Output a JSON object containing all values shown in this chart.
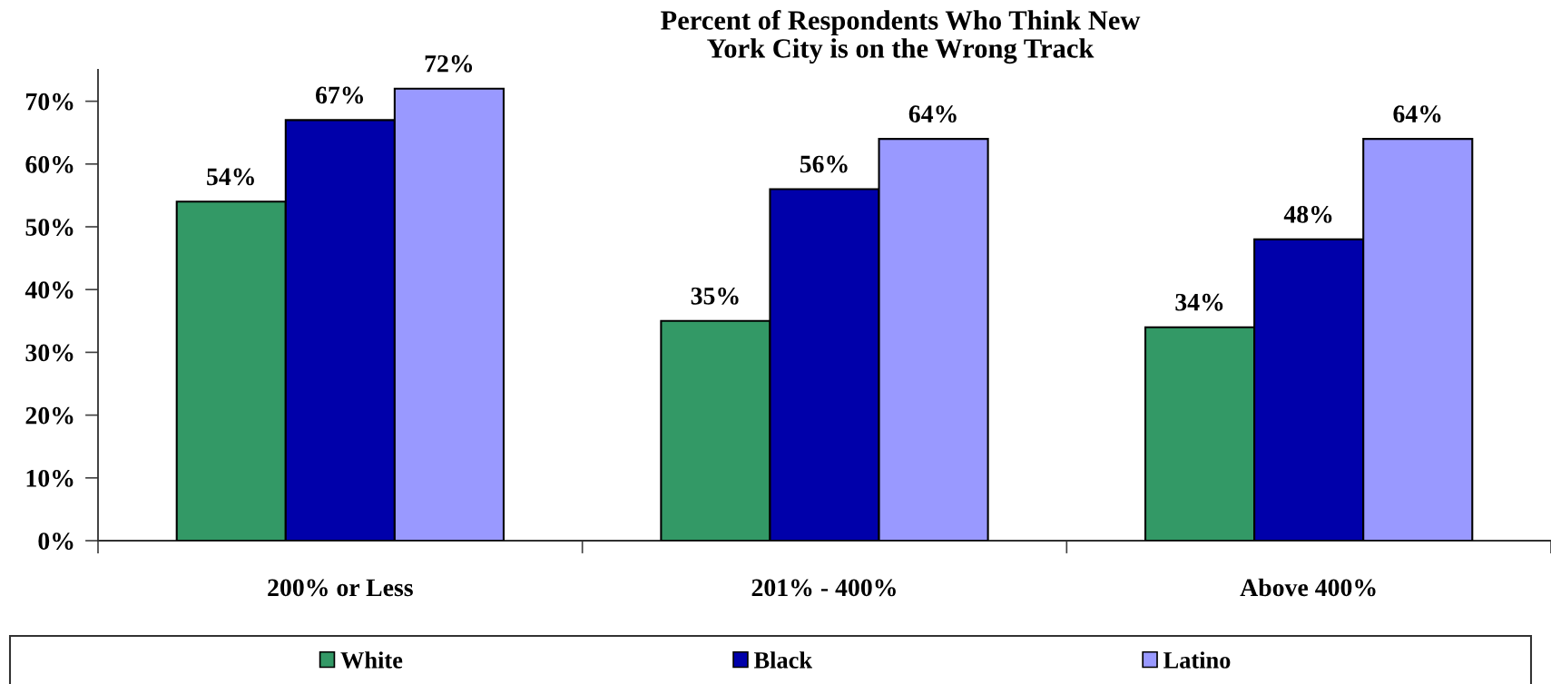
{
  "chart_data": {
    "type": "bar",
    "title": "Percent of Respondents Who Think New\nYork City is on the Wrong Track",
    "categories": [
      "200% or Less",
      "201% - 400%",
      "Above 400%"
    ],
    "series": [
      {
        "name": "White",
        "color": "#339966",
        "values": [
          54,
          35,
          34
        ],
        "value_labels": [
          "54%",
          "35%",
          "34%"
        ]
      },
      {
        "name": "Black",
        "color": "#0000aa",
        "values": [
          67,
          56,
          48
        ],
        "value_labels": [
          "67%",
          "56%",
          "48%"
        ]
      },
      {
        "name": "Latino",
        "color": "#9999ff",
        "values": [
          72,
          64,
          64
        ],
        "value_labels": [
          "72%",
          "64%",
          "64%"
        ]
      }
    ],
    "ylim": [
      0,
      75
    ],
    "yticks": [
      {
        "value": 0,
        "label": "0%"
      },
      {
        "value": 10,
        "label": "10%"
      },
      {
        "value": 20,
        "label": "20%"
      },
      {
        "value": 30,
        "label": "30%"
      },
      {
        "value": 40,
        "label": "40%"
      },
      {
        "value": 50,
        "label": "50%"
      },
      {
        "value": 60,
        "label": "60%"
      },
      {
        "value": 70,
        "label": "70%"
      }
    ],
    "legend": "bottom"
  }
}
